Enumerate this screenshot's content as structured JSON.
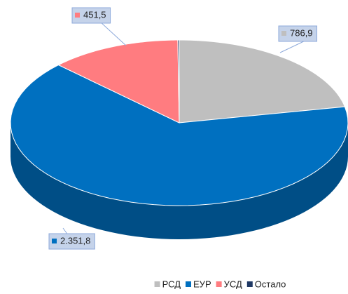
{
  "chart_data": {
    "type": "pie3d",
    "categories": [
      "РСД",
      "ЕУР",
      "УСД",
      "Остало"
    ],
    "values": [
      786.9,
      2351.8,
      451.5,
      5
    ],
    "value_labels": [
      "786,9",
      "2.351,8",
      "451,5",
      null
    ],
    "colors": [
      "#bfbfbf",
      "#0070c0",
      "#ff7c80",
      "#1f3864"
    ],
    "legend": "bottom"
  }
}
